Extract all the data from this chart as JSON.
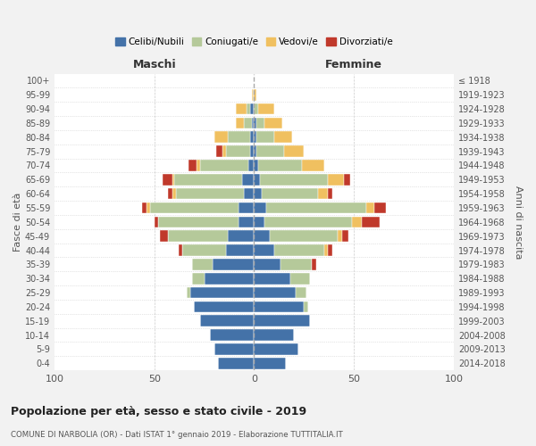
{
  "age_groups": [
    "0-4",
    "5-9",
    "10-14",
    "15-19",
    "20-24",
    "25-29",
    "30-34",
    "35-39",
    "40-44",
    "45-49",
    "50-54",
    "55-59",
    "60-64",
    "65-69",
    "70-74",
    "75-79",
    "80-84",
    "85-89",
    "90-94",
    "95-99",
    "100+"
  ],
  "birth_years": [
    "2014-2018",
    "2009-2013",
    "2004-2008",
    "1999-2003",
    "1994-1998",
    "1989-1993",
    "1984-1988",
    "1979-1983",
    "1974-1978",
    "1969-1973",
    "1964-1968",
    "1959-1963",
    "1954-1958",
    "1949-1953",
    "1944-1948",
    "1939-1943",
    "1934-1938",
    "1929-1933",
    "1924-1928",
    "1919-1923",
    "≤ 1918"
  ],
  "males": {
    "celibi": [
      18,
      20,
      22,
      27,
      30,
      32,
      25,
      21,
      14,
      13,
      8,
      8,
      5,
      6,
      3,
      2,
      2,
      1,
      2,
      0,
      0
    ],
    "coniugati": [
      0,
      0,
      0,
      0,
      0,
      2,
      6,
      10,
      22,
      30,
      40,
      44,
      34,
      34,
      24,
      12,
      11,
      4,
      2,
      0,
      0
    ],
    "vedovi": [
      0,
      0,
      0,
      0,
      0,
      0,
      0,
      0,
      0,
      0,
      0,
      2,
      2,
      1,
      2,
      2,
      7,
      4,
      5,
      1,
      0
    ],
    "divorziati": [
      0,
      0,
      0,
      0,
      0,
      0,
      0,
      0,
      2,
      4,
      2,
      2,
      2,
      5,
      4,
      3,
      0,
      0,
      0,
      0,
      0
    ]
  },
  "females": {
    "nubili": [
      16,
      22,
      20,
      28,
      25,
      21,
      18,
      13,
      10,
      8,
      5,
      6,
      4,
      3,
      2,
      1,
      1,
      1,
      0,
      0,
      0
    ],
    "coniugate": [
      0,
      0,
      0,
      0,
      2,
      5,
      10,
      16,
      25,
      34,
      44,
      50,
      28,
      34,
      22,
      14,
      9,
      4,
      2,
      0,
      0
    ],
    "vedove": [
      0,
      0,
      0,
      0,
      0,
      0,
      0,
      0,
      2,
      2,
      5,
      4,
      5,
      8,
      11,
      10,
      9,
      9,
      8,
      1,
      0
    ],
    "divorziate": [
      0,
      0,
      0,
      0,
      0,
      0,
      0,
      2,
      2,
      3,
      9,
      6,
      2,
      3,
      0,
      0,
      0,
      0,
      0,
      0,
      0
    ]
  },
  "colors": {
    "celibi": "#4472a8",
    "coniugati": "#b5c99a",
    "vedovi": "#f0c060",
    "divorziati": "#c0392b"
  },
  "xlim": 100,
  "title": "Popolazione per età, sesso e stato civile - 2019",
  "subtitle": "COMUNE DI NARBOLIA (OR) - Dati ISTAT 1° gennaio 2019 - Elaborazione TUTTITALIA.IT",
  "ylabel_left": "Fasce di età",
  "ylabel_right": "Anni di nascita",
  "label_maschi": "Maschi",
  "label_femmine": "Femmine",
  "bg_color": "#f2f2f2",
  "plot_bg_color": "#ffffff",
  "legend": [
    "Celibi/Nubili",
    "Coniugati/e",
    "Vedovi/e",
    "Divorziati/e"
  ]
}
